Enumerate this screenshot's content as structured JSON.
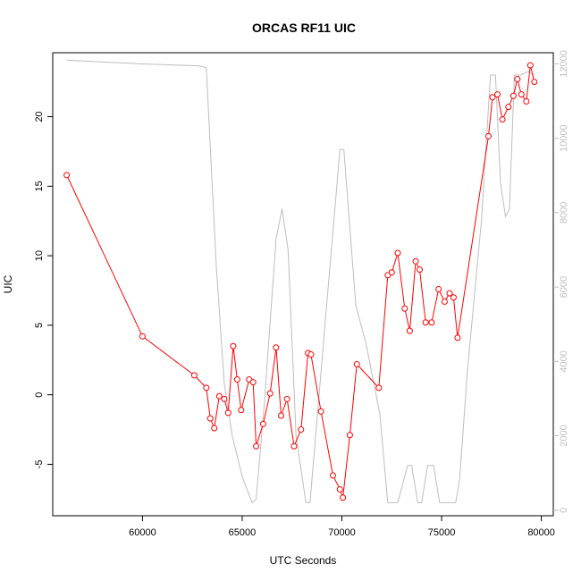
{
  "chart_data": {
    "type": "line",
    "title": "ORCAS RF11 UIC",
    "xlabel": "UTC Seconds",
    "ylabel": "UIC",
    "xlim": [
      55500,
      80600
    ],
    "ylim": [
      -8.7,
      24.6
    ],
    "y2lim": [
      -150,
      12300
    ],
    "x_ticks": [
      60000,
      65000,
      70000,
      75000,
      80000
    ],
    "x_tick_labels": [
      "60000",
      "65000",
      "70000",
      "75000",
      "80000"
    ],
    "y_ticks": [
      -5,
      0,
      5,
      10,
      15,
      20
    ],
    "y_tick_labels": [
      "-5",
      "0",
      "5",
      "10",
      "15",
      "20"
    ],
    "y2_ticks": [
      0,
      2000,
      4000,
      6000,
      8000,
      10000,
      12000
    ],
    "y2_tick_labels": [
      "0",
      "2000",
      "4000",
      "6000",
      "8000",
      "10000",
      "12000"
    ],
    "grid": false,
    "legend": "none",
    "colors": {
      "uic": "#ff0000",
      "secondary": "#bebebe",
      "axes": "#000000"
    },
    "series": [
      {
        "axis": "left",
        "style": "line+open-circles",
        "x": [
          56200,
          60000,
          62600,
          63200,
          63400,
          63600,
          63850,
          64100,
          64300,
          64550,
          64750,
          64950,
          65350,
          65550,
          65700,
          66050,
          66400,
          66700,
          66950,
          67250,
          67600,
          67950,
          68300,
          68450,
          68950,
          69550,
          69900,
          70050,
          70400,
          70750,
          71850,
          72300,
          72500,
          72800,
          73150,
          73400,
          73700,
          73900,
          74200,
          74500,
          74850,
          75150,
          75400,
          75600,
          75800,
          77350,
          77550,
          77800,
          78050,
          78350,
          78600,
          78800,
          79000,
          79250,
          79450,
          79650
        ],
        "y": [
          15.8,
          4.2,
          1.4,
          0.5,
          -1.7,
          -2.4,
          -0.1,
          -0.3,
          -1.3,
          3.5,
          1.1,
          -1.1,
          1.1,
          0.9,
          -3.7,
          -2.1,
          0.1,
          3.4,
          -1.5,
          -0.3,
          -3.7,
          -2.5,
          3.0,
          2.9,
          -1.2,
          -5.8,
          -6.8,
          -7.4,
          -2.9,
          2.2,
          0.5,
          8.6,
          8.8,
          10.2,
          6.2,
          4.6,
          9.6,
          9.0,
          5.2,
          5.2,
          7.6,
          6.7,
          7.3,
          7.0,
          4.1,
          18.6,
          21.4,
          21.6,
          19.8,
          20.7,
          21.5,
          22.7,
          21.6,
          21.1,
          23.7,
          22.5
        ]
      },
      {
        "axis": "right",
        "style": "line",
        "x": [
          56200,
          60000,
          62800,
          63200,
          63700,
          64100,
          64500,
          65000,
          65500,
          65700,
          66100,
          66700,
          67000,
          67300,
          67700,
          68200,
          68400,
          69200,
          69900,
          70100,
          70700,
          71200,
          71900,
          72300,
          72500,
          72800,
          73300,
          73500,
          73800,
          74000,
          74300,
          74600,
          74900,
          75200,
          75700,
          75900,
          76300,
          77000,
          77450,
          77700,
          77950,
          78200,
          78400,
          78650,
          78950,
          79350,
          79650
        ],
        "y": [
          12100,
          12000,
          11950,
          11900,
          6600,
          3400,
          2000,
          900,
          200,
          300,
          2800,
          7300,
          8100,
          7000,
          2000,
          200,
          200,
          5300,
          9700,
          9700,
          5500,
          4500,
          2600,
          200,
          200,
          200,
          1200,
          1200,
          200,
          200,
          1200,
          1200,
          200,
          200,
          200,
          800,
          3800,
          7800,
          11700,
          11700,
          8800,
          7900,
          8100,
          11700,
          11700,
          11800,
          11700
        ]
      }
    ]
  }
}
